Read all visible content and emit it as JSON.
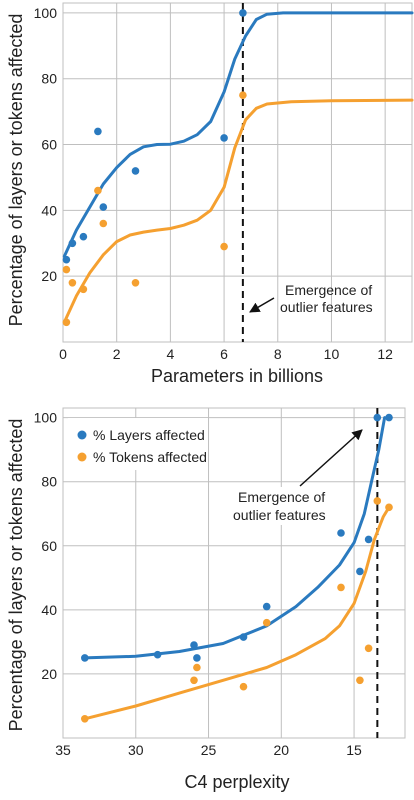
{
  "colors": {
    "layers": "#2a7abf",
    "tokens": "#f5a030",
    "grid": "#bfbfbf"
  },
  "chart_data": [
    {
      "type": "scatter",
      "title": "",
      "xlabel": "Parameters in billions",
      "ylabel": "Percentage of layers or tokens affected",
      "xlim": [
        0,
        13
      ],
      "ylim": [
        0,
        103
      ],
      "xticks": [
        0,
        2,
        4,
        6,
        8,
        10,
        12
      ],
      "yticks": [
        20,
        40,
        60,
        80,
        100
      ],
      "threshold_x": 6.7,
      "annotation": {
        "lines": [
          "Emergence of",
          "outlier features"
        ]
      },
      "grid": true,
      "series": [
        {
          "key": "layers",
          "points": [
            [
              0.125,
              25
            ],
            [
              0.35,
              30
            ],
            [
              0.76,
              32
            ],
            [
              1.3,
              64
            ],
            [
              1.5,
              41
            ],
            [
              2.7,
              52
            ],
            [
              6.0,
              62
            ],
            [
              6.7,
              100
            ]
          ],
          "curve": [
            [
              0.05,
              26
            ],
            [
              0.5,
              34
            ],
            [
              1.0,
              41
            ],
            [
              1.5,
              48
            ],
            [
              2.0,
              53
            ],
            [
              2.5,
              57
            ],
            [
              3.0,
              59.3
            ],
            [
              3.5,
              60
            ],
            [
              4.0,
              60.1
            ],
            [
              4.5,
              61
            ],
            [
              5.0,
              63
            ],
            [
              5.5,
              67
            ],
            [
              6.0,
              76
            ],
            [
              6.4,
              86
            ],
            [
              6.8,
              93
            ],
            [
              7.2,
              98
            ],
            [
              7.6,
              99.6
            ],
            [
              8.2,
              100
            ],
            [
              13,
              100
            ]
          ]
        },
        {
          "key": "tokens",
          "points": [
            [
              0.125,
              6
            ],
            [
              0.125,
              22
            ],
            [
              0.35,
              18
            ],
            [
              0.76,
              16
            ],
            [
              1.3,
              46
            ],
            [
              1.5,
              36
            ],
            [
              2.7,
              18
            ],
            [
              6.0,
              29
            ],
            [
              6.7,
              75
            ]
          ],
          "curve": [
            [
              0.05,
              6
            ],
            [
              0.5,
              14
            ],
            [
              1.0,
              21
            ],
            [
              1.5,
              26.5
            ],
            [
              2.0,
              30.5
            ],
            [
              2.5,
              32.5
            ],
            [
              3.0,
              33.4
            ],
            [
              3.5,
              34
            ],
            [
              4.0,
              34.5
            ],
            [
              4.5,
              35.5
            ],
            [
              5.0,
              37
            ],
            [
              5.5,
              40
            ],
            [
              6.0,
              47
            ],
            [
              6.4,
              59
            ],
            [
              6.8,
              67.5
            ],
            [
              7.2,
              71
            ],
            [
              7.6,
              72.3
            ],
            [
              8.5,
              73
            ],
            [
              10,
              73.3
            ],
            [
              13,
              73.5
            ]
          ]
        }
      ]
    },
    {
      "type": "scatter",
      "title": "",
      "xlabel": "C4 perplexity",
      "ylabel": "Percentage of layers or tokens affected",
      "xlim": [
        35,
        11.5
      ],
      "ylim": [
        0,
        103
      ],
      "xticks": [
        35,
        30,
        25,
        20,
        15
      ],
      "yticks": [
        20,
        40,
        60,
        80,
        100
      ],
      "threshold_x": 13.4,
      "annotation": {
        "lines": [
          "Emergence of",
          "outlier features"
        ]
      },
      "legend": {
        "placement": "top-left"
      },
      "grid": true,
      "series": [
        {
          "key": "layers",
          "name": "% Layers affected",
          "points": [
            [
              33.5,
              25
            ],
            [
              28.5,
              26
            ],
            [
              26.0,
              29
            ],
            [
              25.8,
              25
            ],
            [
              22.6,
              31.5
            ],
            [
              21.0,
              41
            ],
            [
              15.9,
              64
            ],
            [
              14.6,
              52
            ],
            [
              14.0,
              62
            ],
            [
              13.4,
              100
            ],
            [
              12.6,
              100
            ]
          ],
          "curve": [
            [
              33.5,
              25
            ],
            [
              30,
              25.5
            ],
            [
              27,
              27
            ],
            [
              24,
              29.5
            ],
            [
              21,
              35
            ],
            [
              19,
              41
            ],
            [
              17.5,
              47
            ],
            [
              16,
              54
            ],
            [
              15,
              61
            ],
            [
              14.3,
              70
            ],
            [
              13.8,
              80
            ],
            [
              13.3,
              90
            ],
            [
              12.9,
              100
            ]
          ]
        },
        {
          "key": "tokens",
          "name": "% Tokens affected",
          "points": [
            [
              33.5,
              6
            ],
            [
              26.0,
              18
            ],
            [
              25.8,
              22
            ],
            [
              22.6,
              16
            ],
            [
              21.0,
              36
            ],
            [
              15.9,
              47
            ],
            [
              14.6,
              18
            ],
            [
              14.0,
              28
            ],
            [
              13.4,
              74
            ],
            [
              12.6,
              72
            ]
          ],
          "curve": [
            [
              33.5,
              6
            ],
            [
              30,
              10
            ],
            [
              27,
              14
            ],
            [
              24,
              18
            ],
            [
              21,
              22
            ],
            [
              19,
              26
            ],
            [
              17,
              31
            ],
            [
              16,
              35
            ],
            [
              15,
              42
            ],
            [
              14.2,
              52
            ],
            [
              13.6,
              62
            ],
            [
              13.0,
              69
            ],
            [
              12.6,
              72
            ]
          ]
        }
      ]
    }
  ]
}
